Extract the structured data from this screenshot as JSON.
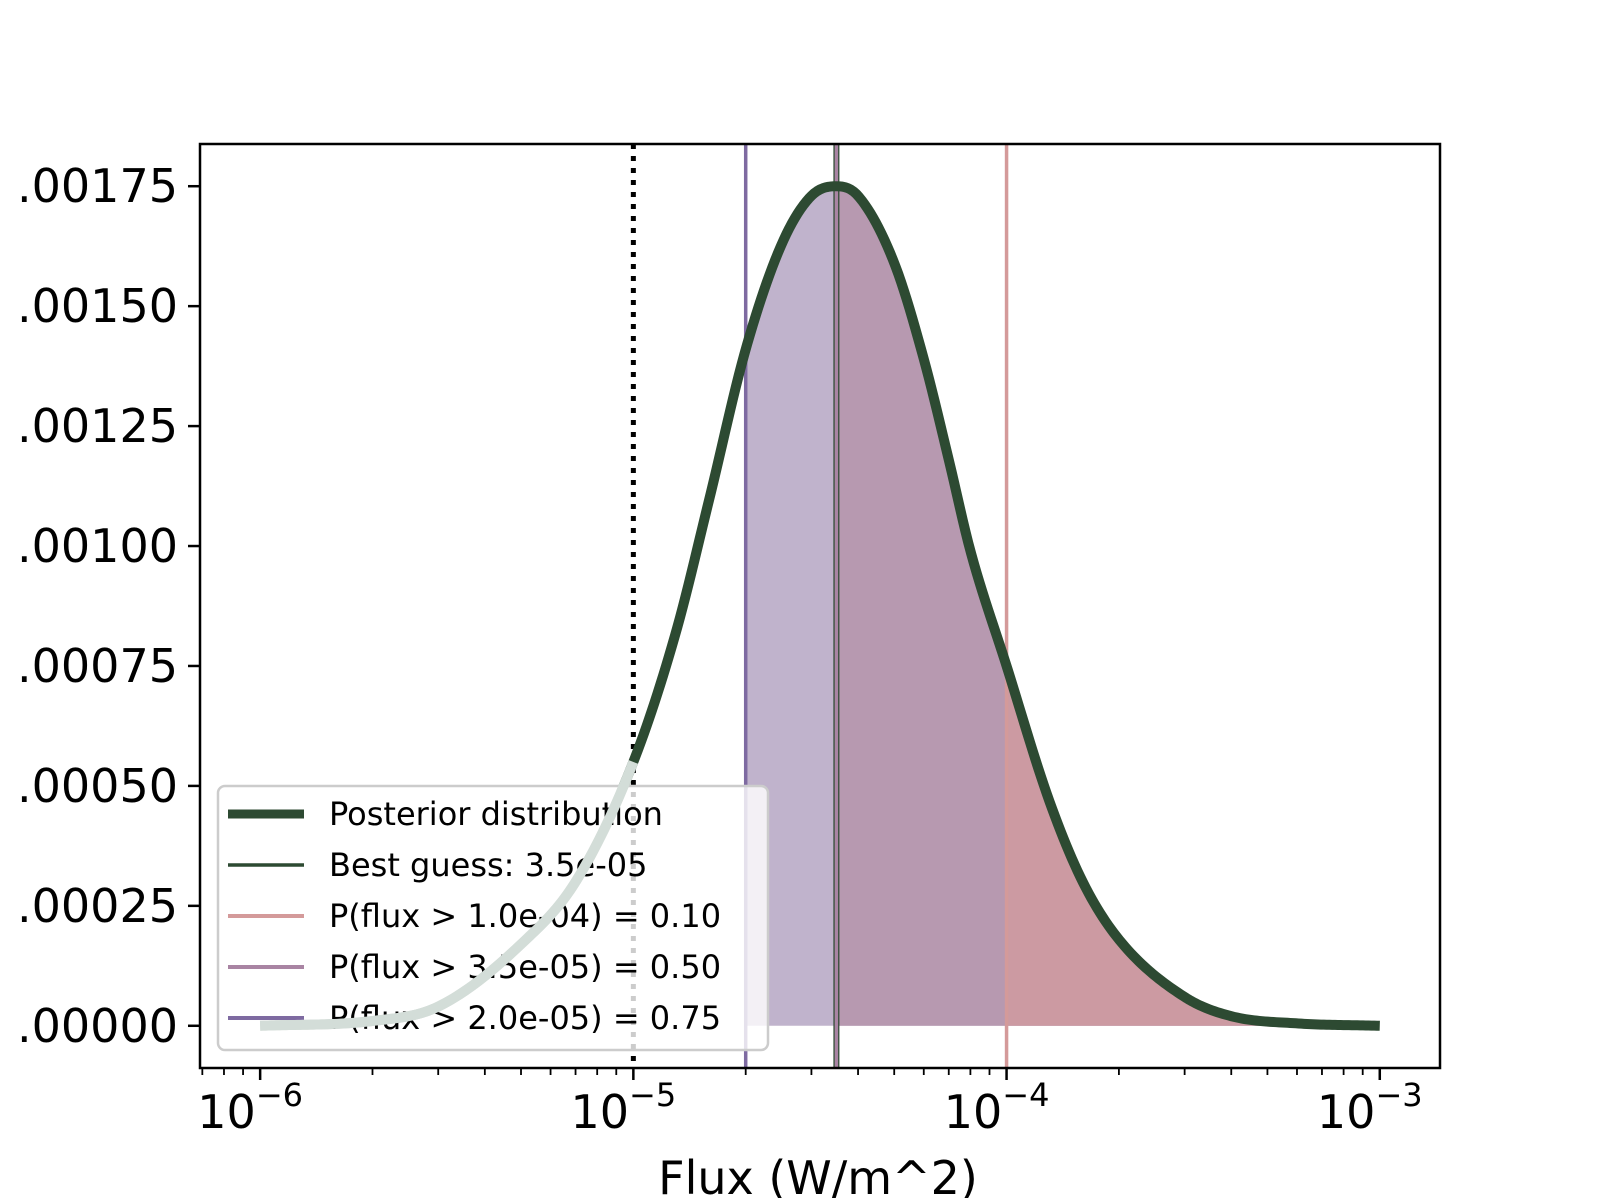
{
  "chart_data": {
    "type": "line",
    "xlabel": "Flux (W/m^2)",
    "ylabel": "",
    "xscale": "log",
    "xlim": [
      6.9e-07,
      0.00145
    ],
    "ylim": [
      -8.8e-05,
      0.001838
    ],
    "grid": false,
    "legend_position": "lower-left",
    "x_ticks": [
      {
        "value": 1e-06,
        "base": "10",
        "exponent": "−6"
      },
      {
        "value": 1e-05,
        "base": "10",
        "exponent": "−5"
      },
      {
        "value": 0.0001,
        "base": "10",
        "exponent": "−4"
      },
      {
        "value": 0.001,
        "base": "10",
        "exponent": "−3"
      }
    ],
    "y_ticks": [
      {
        "value": 0.0,
        "label": ".00000"
      },
      {
        "value": 0.00025,
        "label": ".00025"
      },
      {
        "value": 0.0005,
        "label": ".00050"
      },
      {
        "value": 0.00075,
        "label": ".00075"
      },
      {
        "value": 0.001,
        "label": ".00100"
      },
      {
        "value": 0.00125,
        "label": ".00125"
      },
      {
        "value": 0.0015,
        "label": ".00150"
      },
      {
        "value": 0.00175,
        "label": ".00175"
      }
    ],
    "posterior": {
      "x": [
        1e-06,
        2e-06,
        3e-06,
        5e-06,
        7e-06,
        1e-05,
        1.3e-05,
        1.6e-05,
        2e-05,
        2.5e-05,
        3e-05,
        3.5e-05,
        4e-05,
        5e-05,
        6e-05,
        7e-05,
        8e-05,
        0.0001,
        0.00013,
        0.00016,
        0.0002,
        0.0003,
        0.0004,
        0.0006,
        0.001
      ],
      "y": [
        0.0,
        1e-05,
        4e-05,
        0.00017,
        0.0003,
        0.00055,
        0.00082,
        0.0011,
        0.00141,
        0.00163,
        0.00173,
        0.00175,
        0.00173,
        0.00159,
        0.00139,
        0.00118,
        0.00099,
        0.00075,
        0.00047,
        0.0003,
        0.00018,
        6e-05,
        2e-05,
        5e-06,
        0.0
      ]
    },
    "vlines": [
      {
        "x": 1e-05,
        "style": "dotted",
        "color": "#000000"
      },
      {
        "x": 0.0001,
        "style": "dashed",
        "color": "#000000"
      },
      {
        "x": 2e-05,
        "style": "solid",
        "color": "#7e6aa1"
      },
      {
        "x": 3.5e-05,
        "style": "solid",
        "color": "#2d4a32"
      },
      {
        "x": 3.5e-05,
        "style": "solid",
        "color": "#a984a3"
      },
      {
        "x": 0.0001,
        "style": "solid",
        "color": "#d49a9a"
      }
    ],
    "shaded_regions": [
      {
        "from": 2e-05,
        "color": "#c0b3cc"
      },
      {
        "from": 3.5e-05,
        "color": "#b799b0"
      },
      {
        "from": 0.0001,
        "color": "#cc9aa2"
      }
    ],
    "low_flux_curve_color": "#d3ddd8",
    "colors": {
      "posterior": "#2d4a32",
      "best_guess": "#2d4a32",
      "p10": "#d49a9a",
      "p50": "#a984a3",
      "p75": "#7e6aa1"
    },
    "legend": [
      {
        "label": "Posterior distribution",
        "color": "#2d4a32",
        "width": 9
      },
      {
        "label": "Best guess: 3.5e-05",
        "color": "#2d4a32",
        "width": 3.5
      },
      {
        "label": "P(flux > 1.0e-04) = 0.10",
        "color": "#d49a9a",
        "width": 4
      },
      {
        "label": "P(flux > 3.5e-05) = 0.50",
        "color": "#a984a3",
        "width": 4
      },
      {
        "label": "P(flux > 2.0e-05) = 0.75",
        "color": "#7e6aa1",
        "width": 4
      }
    ]
  }
}
